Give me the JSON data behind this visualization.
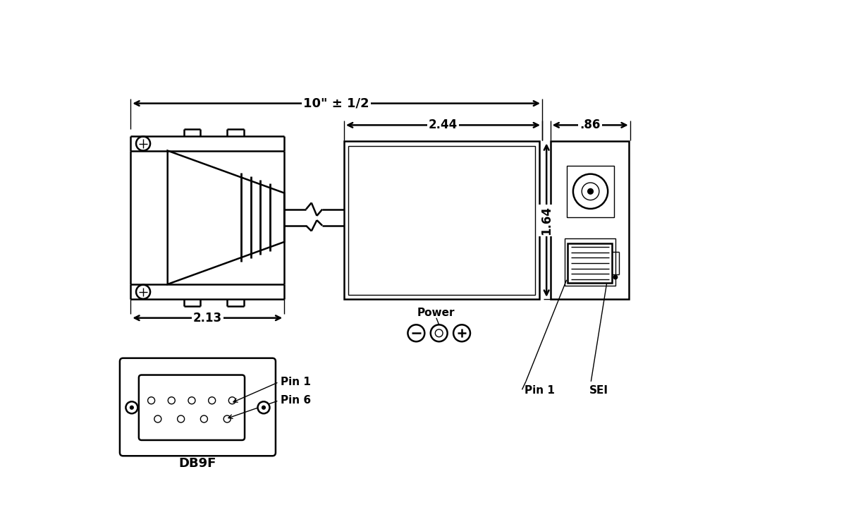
{
  "bg_color": "#ffffff",
  "line_color": "#000000",
  "lw": 1.8,
  "thin_lw": 1.0,
  "dim_10": "10\" ± 1/2",
  "dim_244": "2.44",
  "dim_086": ".86",
  "dim_164": "1.64",
  "dim_213": "2.13",
  "label_power": "Power",
  "label_pin1_top": "Pin 1",
  "label_sei": "SEI",
  "label_db9f": "DB9F",
  "label_pin1_bot": "Pin 1",
  "label_pin6": "Pin 6"
}
